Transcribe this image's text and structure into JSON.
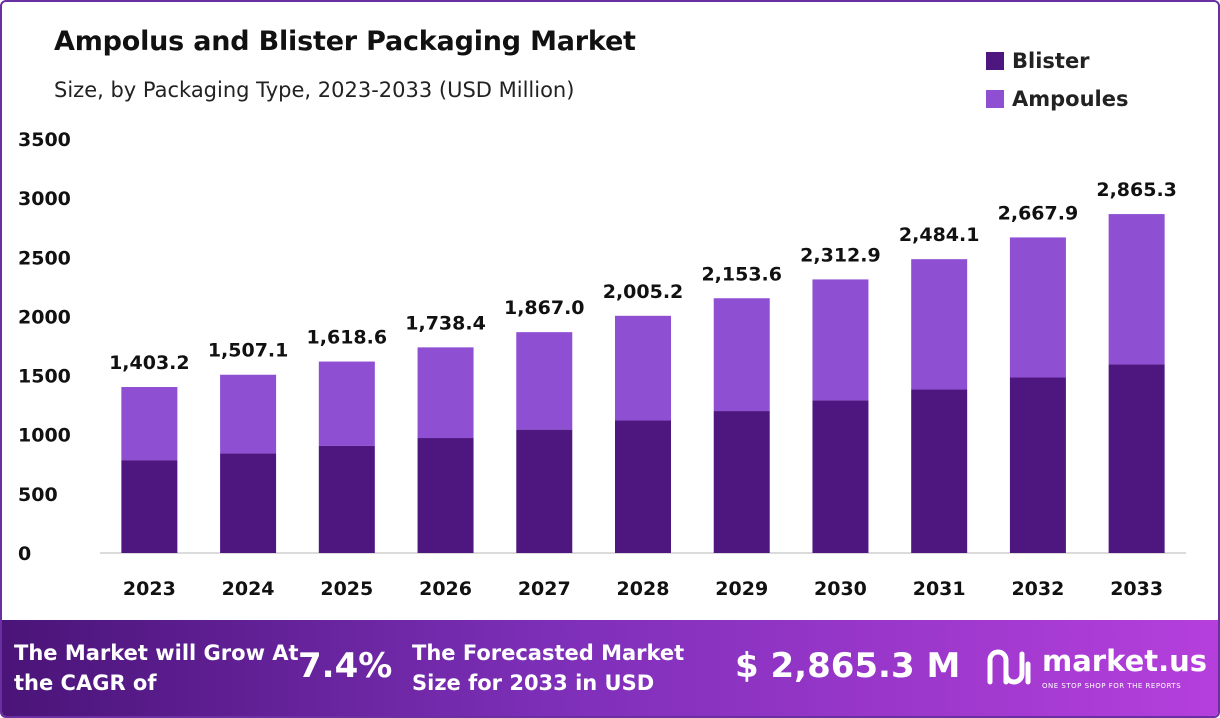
{
  "title": "Ampolus and Blister Packaging Market",
  "subtitle": "Size, by Packaging Type, 2023-2033 (USD Million)",
  "colors": {
    "blister": "#4e1780",
    "ampoules": "#8e4fd2"
  },
  "chart_data": {
    "type": "bar",
    "stacked": true,
    "categories": [
      "2023",
      "2024",
      "2025",
      "2026",
      "2027",
      "2028",
      "2029",
      "2030",
      "2031",
      "2032",
      "2033"
    ],
    "series": [
      {
        "name": "Blister",
        "values": [
          785,
          842,
          905,
          972,
          1043,
          1120,
          1200,
          1290,
          1382,
          1484,
          1594
        ]
      },
      {
        "name": "Ampoules",
        "values": [
          618.2,
          665.1,
          713.6,
          766.4,
          824.0,
          885.2,
          953.6,
          1022.9,
          1102.1,
          1183.9,
          1271.3
        ]
      }
    ],
    "totals": [
      "1,403.2",
      "1,507.1",
      "1,618.6",
      "1,738.4",
      "1,867.0",
      "2,005.2",
      "2,153.6",
      "2,312.9",
      "2,484.1",
      "2,667.9",
      "2,865.3"
    ],
    "ylim": [
      0,
      3500
    ],
    "yticks": [
      0,
      500,
      1000,
      1500,
      2000,
      2500,
      3000,
      3500
    ],
    "grid": false,
    "legend_position": "top-right"
  },
  "footer": {
    "cagr_text": "The Market will Grow At the CAGR of",
    "cagr_value": "7.4%",
    "forecast_text": "The Forecasted Market Size for 2033 in USD",
    "forecast_value": "$ 2,865.3 M",
    "logo_text": "market.us",
    "logo_tagline": "ONE STOP SHOP FOR THE REPORTS"
  }
}
